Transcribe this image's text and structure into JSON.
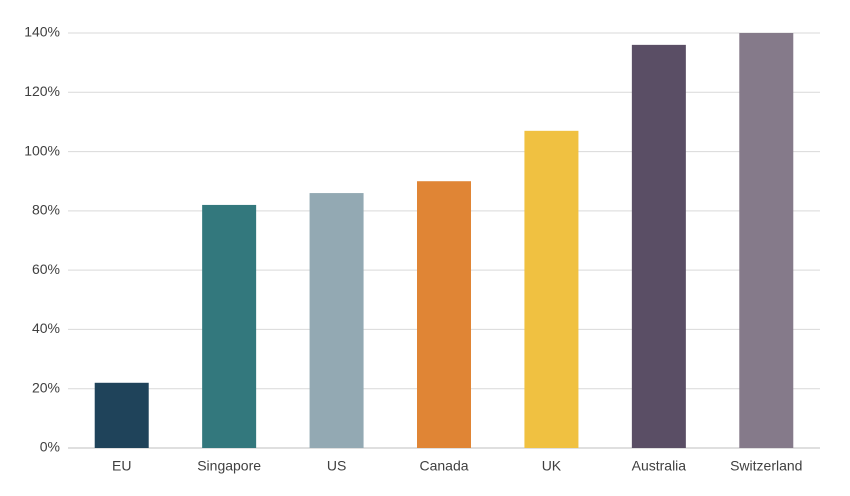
{
  "chart_data": {
    "type": "bar",
    "categories": [
      "EU",
      "Singapore",
      "US",
      "Canada",
      "UK",
      "Australia",
      "Switzerland"
    ],
    "values": [
      22,
      82,
      86,
      90,
      107,
      136,
      140
    ],
    "colors": [
      "#1f435a",
      "#33787d",
      "#93a9b3",
      "#e08535",
      "#f0c141",
      "#5a4e65",
      "#857a8a"
    ],
    "ylim": [
      0,
      140
    ],
    "yticks": [
      {
        "value": 0,
        "label": "0%"
      },
      {
        "value": 20,
        "label": "20%"
      },
      {
        "value": 40,
        "label": "40%"
      },
      {
        "value": 60,
        "label": "60%"
      },
      {
        "value": 80,
        "label": "80%"
      },
      {
        "value": 100,
        "label": "100%"
      },
      {
        "value": 120,
        "label": "120%"
      },
      {
        "value": 140,
        "label": "140%"
      }
    ],
    "grid": true
  }
}
